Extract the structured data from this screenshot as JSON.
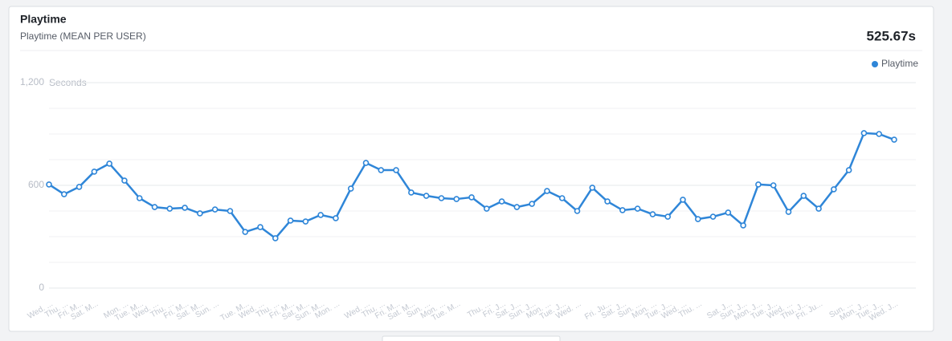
{
  "chart_data": {
    "type": "line",
    "title": "Playtime",
    "subtitle": "Playtime (MEAN PER USER)",
    "summary": "525.67s",
    "y_axis_label": "Seconds",
    "categories": [
      "Wed. ...",
      "Thu. ...",
      "Fri. M...",
      "Sat. M...",
      null,
      "Mon. ...",
      "Tue. M...",
      "Wed. ...",
      "Thu. ...",
      "Fri. M...",
      "Sat. M...",
      "Sun. ...",
      null,
      "Tue. M...",
      "Wed. ...",
      "Thu. ...",
      "Fri. M...",
      "Sat. M...",
      "Sun. M...",
      "Mon. ...",
      null,
      "Wed. ...",
      "Thu. ...",
      "Fri. M...",
      "Sat. M...",
      "Sun. ...",
      "Mon. ...",
      "Tue. M...",
      null,
      "Thu. ...",
      "Fri. J...",
      "Sat. J...",
      "Sun. J...",
      "Mon. ...",
      "Tue. J...",
      "Wed. ...",
      null,
      "Fri. Ju...",
      "Sat. J...",
      "Sun. ...",
      "Mon. ...",
      "Tue. J...",
      "Wed. ...",
      "Thu. ...",
      null,
      "Sat. J...",
      "Sun. J...",
      "Mon. J...",
      "Tue. J...",
      "Wed. ...",
      "Thu. J...",
      "Fri. Ju...",
      null,
      "Sun. ...",
      "Mon. J...",
      "Tue. J...",
      "Wed. J..."
    ],
    "series": [
      {
        "name": "Playtime",
        "color": "#2f86d8",
        "values": [
          605,
          548,
          591,
          680,
          727,
          628,
          525,
          473,
          464,
          469,
          436,
          459,
          450,
          328,
          356,
          291,
          394,
          389,
          427,
          408,
          581,
          731,
          689,
          689,
          558,
          539,
          525,
          520,
          530,
          464,
          506,
          473,
          492,
          567,
          525,
          450,
          586,
          506,
          455,
          464,
          431,
          417,
          516,
          403,
          417,
          441,
          366,
          605,
          600,
          445,
          539,
          464,
          577,
          689,
          905,
          900,
          867
        ]
      }
    ],
    "ylim": [
      0,
      1200
    ],
    "yticks": [
      0,
      600,
      {
        "value": 1200,
        "label": "1,200"
      }
    ],
    "minor_yticks": [
      150,
      300,
      450,
      750,
      900,
      1050
    ],
    "grid": true,
    "legend": "top-right"
  }
}
